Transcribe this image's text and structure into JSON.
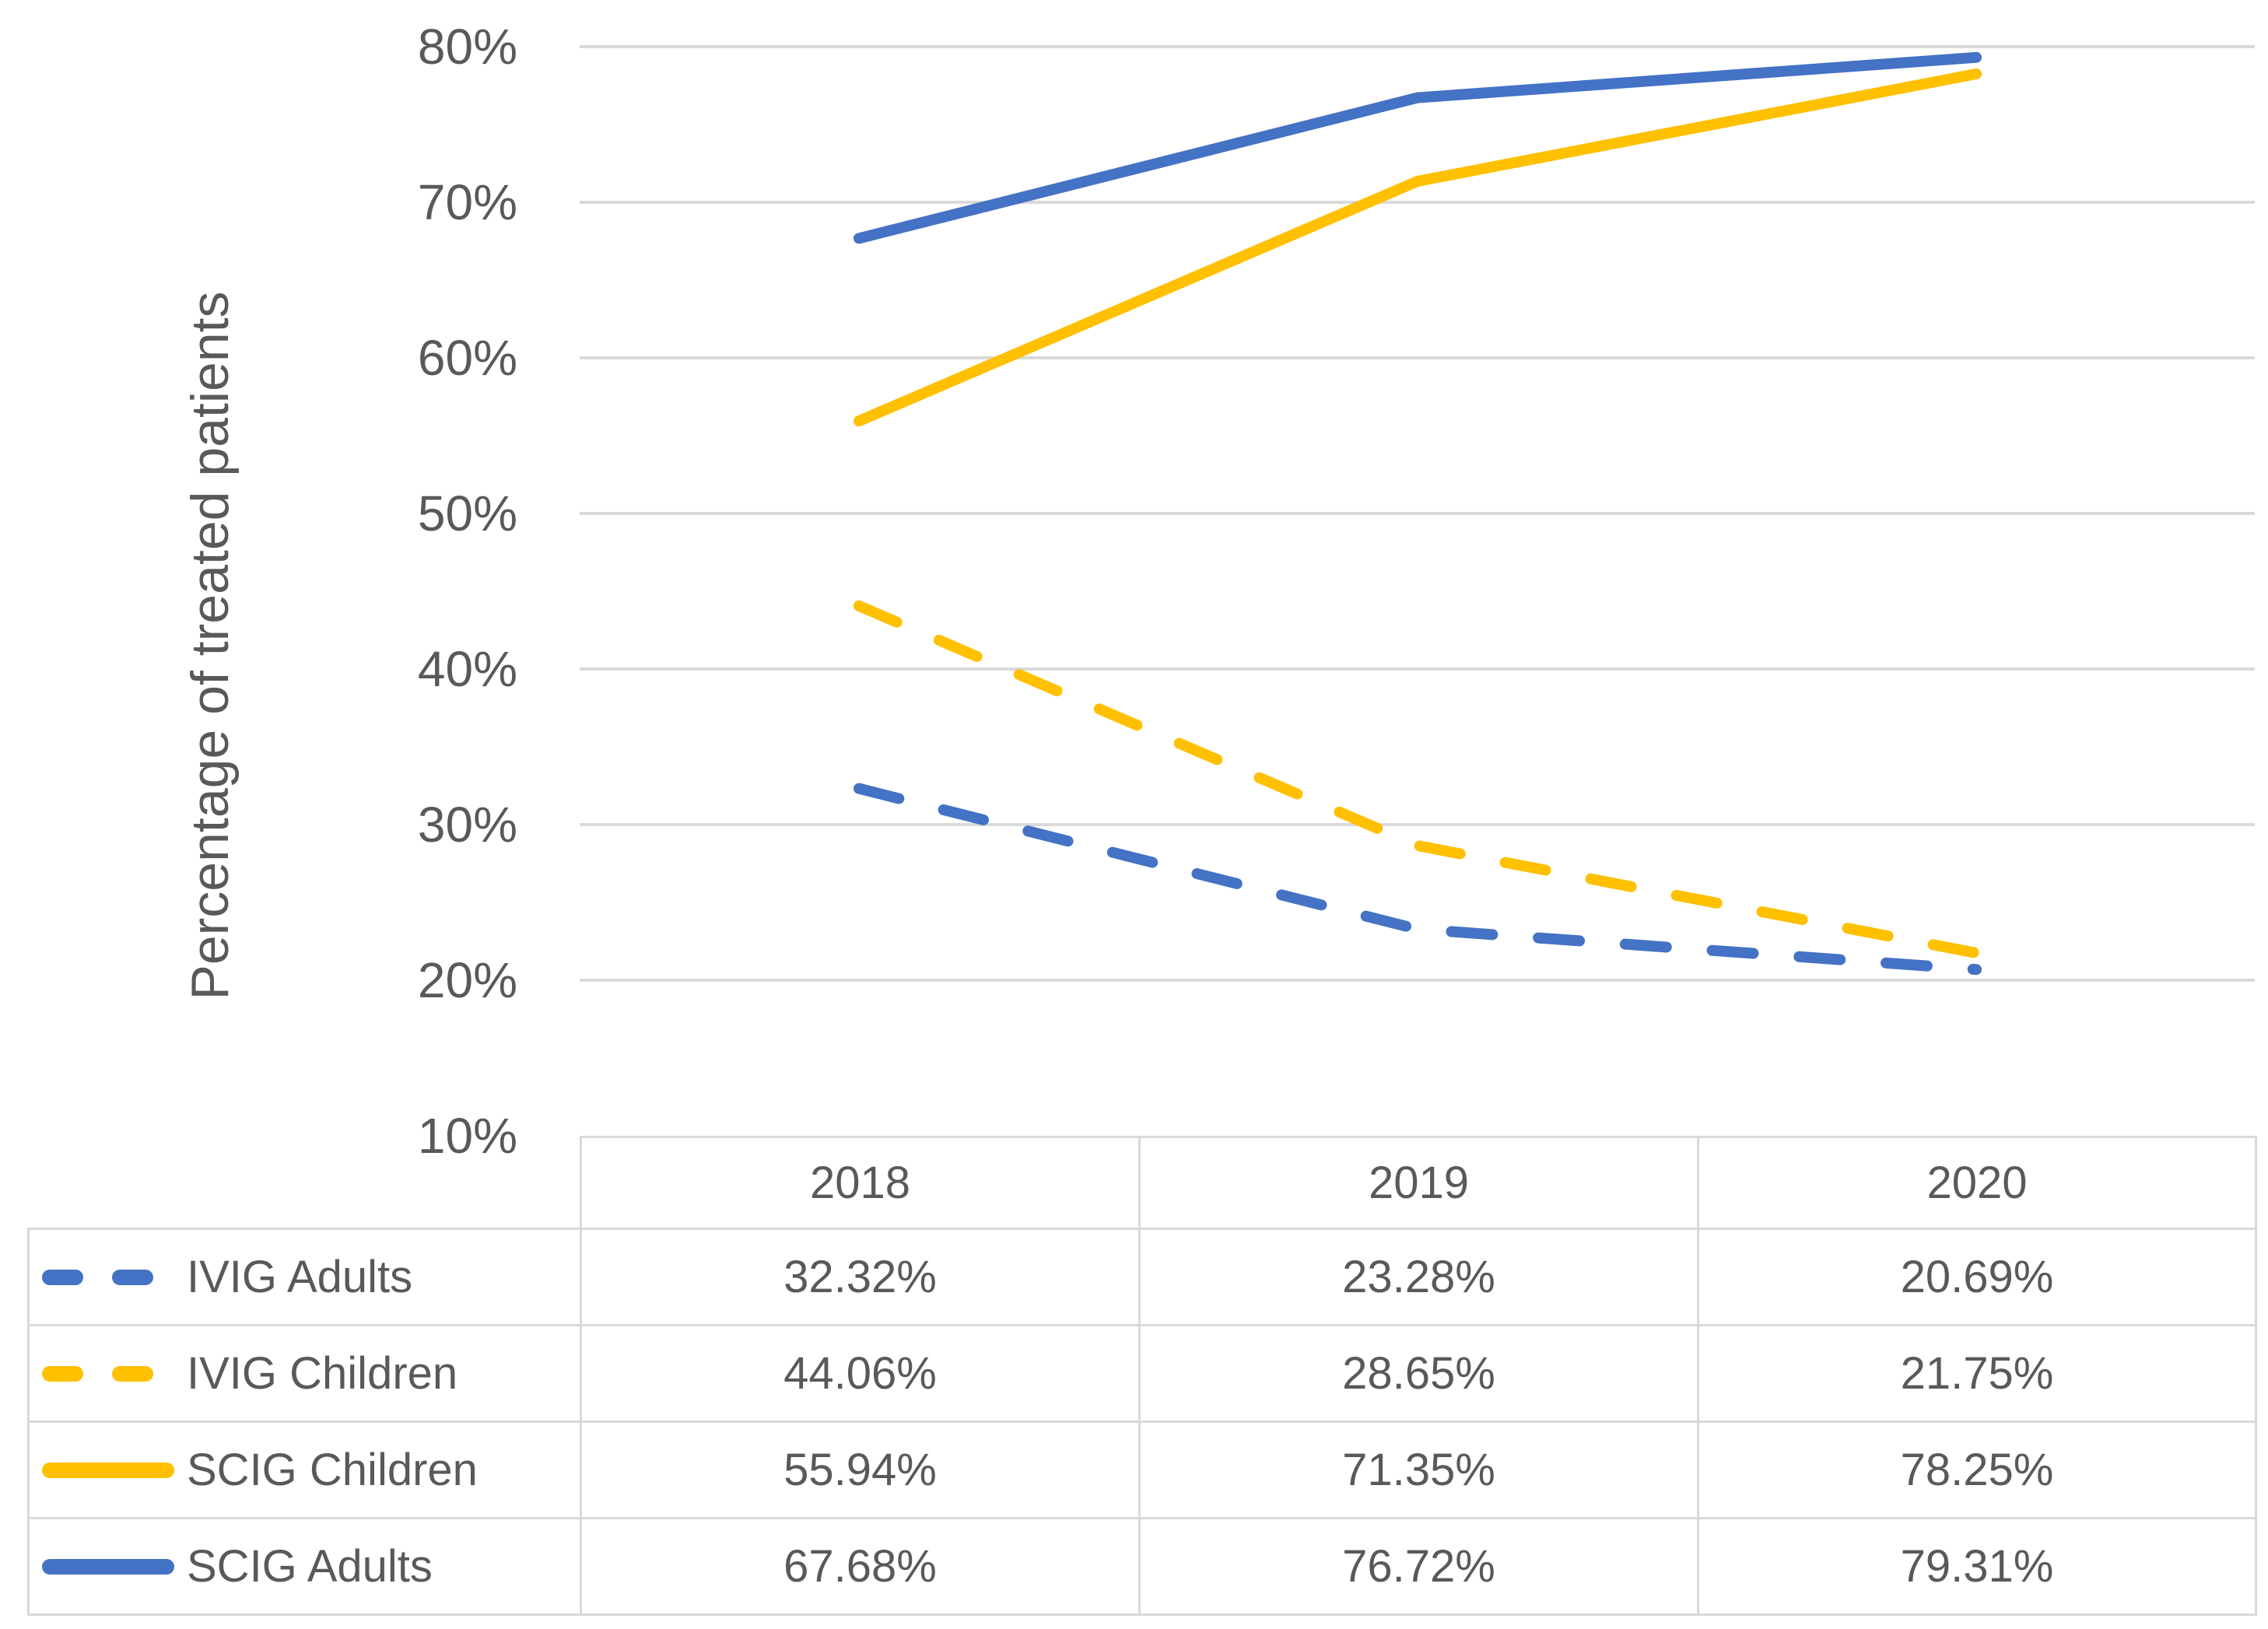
{
  "chart_data": {
    "type": "line",
    "title": "",
    "categories": [
      "2018",
      "2019",
      "2020"
    ],
    "series": [
      {
        "name": "IVIG Adults",
        "color": "#4472C4",
        "style": "dashed",
        "values": [
          32.32,
          23.28,
          20.69
        ]
      },
      {
        "name": "IVIG Children",
        "color": "#FFC000",
        "style": "dashed",
        "values": [
          44.06,
          28.65,
          21.75
        ]
      },
      {
        "name": "SCIG Children",
        "color": "#FFC000",
        "style": "solid",
        "values": [
          55.94,
          71.35,
          78.25
        ]
      },
      {
        "name": "SCIG Adults",
        "color": "#4472C4",
        "style": "solid",
        "values": [
          67.68,
          76.72,
          79.31
        ]
      }
    ],
    "xlabel": "",
    "ylabel": "Percentage of treated patients",
    "y_ticks": [
      "80%",
      "70%",
      "60%",
      "50%",
      "40%",
      "30%",
      "20%",
      "10%"
    ],
    "ylim": [
      10,
      80
    ],
    "grid": true,
    "legend_position": "data-table-left"
  },
  "table": {
    "columns": [
      "2018",
      "2019",
      "2020"
    ],
    "rows": [
      {
        "label": "IVIG Adults",
        "values": [
          "32.32%",
          "23.28%",
          "20.69%"
        ]
      },
      {
        "label": "IVIG Children",
        "values": [
          "44.06%",
          "28.65%",
          "21.75%"
        ]
      },
      {
        "label": "SCIG Children",
        "values": [
          "55.94%",
          "71.35%",
          "78.25%"
        ]
      },
      {
        "label": "SCIG Adults",
        "values": [
          "67.68%",
          "76.72%",
          "79.31%"
        ]
      }
    ]
  },
  "colors": {
    "blue": "#4472C4",
    "gold": "#FFC000",
    "gridline": "#D9D9D9",
    "table_border": "#D9D9D9",
    "text": "#595959"
  }
}
